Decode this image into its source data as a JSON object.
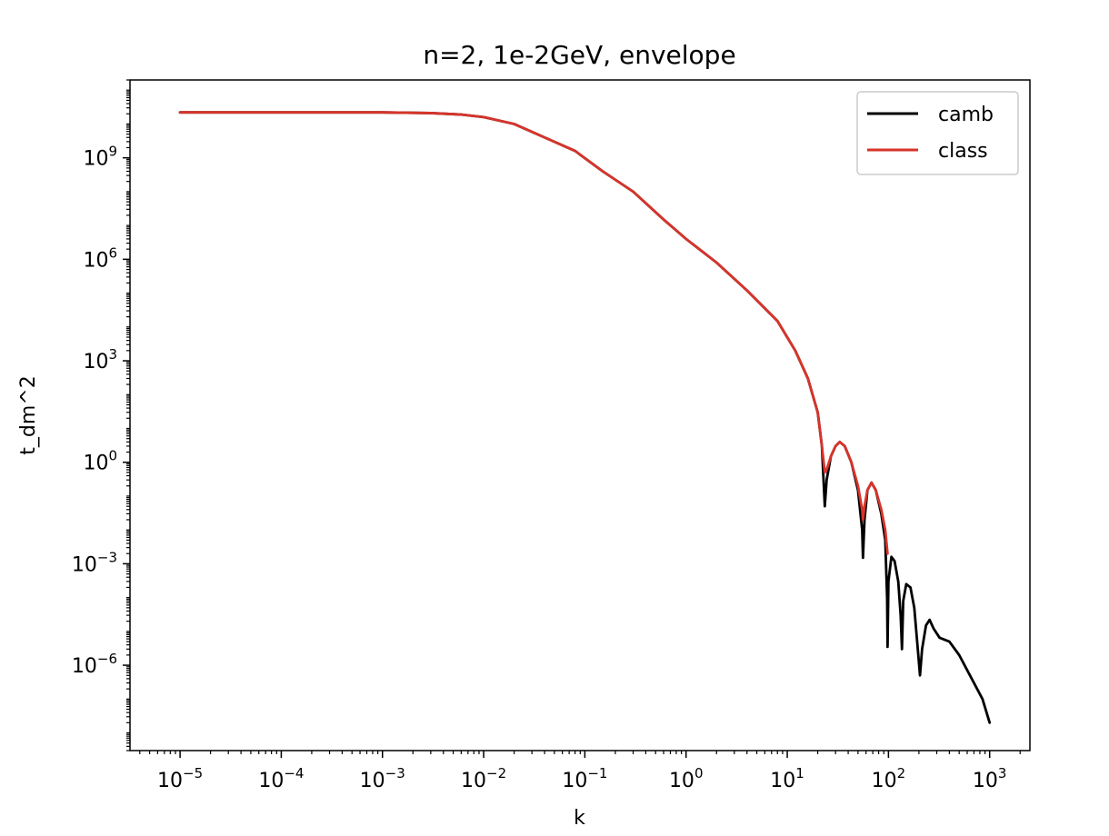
{
  "chart_data": {
    "type": "line",
    "title": "n=2, 1e-2GeV, envelope",
    "xlabel": "k",
    "ylabel": "t_dm^2",
    "xscale": "log",
    "yscale": "log",
    "xlim": [
      3.2e-06,
      2500
    ],
    "ylim": [
      3e-09,
      200000000000.0
    ],
    "x_ticks": [
      {
        "value": 1e-05,
        "base": "10",
        "exp": "−5"
      },
      {
        "value": 0.0001,
        "base": "10",
        "exp": "−4"
      },
      {
        "value": 0.001,
        "base": "10",
        "exp": "−3"
      },
      {
        "value": 0.01,
        "base": "10",
        "exp": "−2"
      },
      {
        "value": 0.1,
        "base": "10",
        "exp": "−1"
      },
      {
        "value": 1,
        "base": "10",
        "exp": "0"
      },
      {
        "value": 10,
        "base": "10",
        "exp": "1"
      },
      {
        "value": 100,
        "base": "10",
        "exp": "2"
      },
      {
        "value": 1000,
        "base": "10",
        "exp": "3"
      }
    ],
    "y_ticks": [
      {
        "value": 1e-06,
        "base": "10",
        "exp": "−6"
      },
      {
        "value": 0.001,
        "base": "10",
        "exp": "−3"
      },
      {
        "value": 1,
        "base": "10",
        "exp": "0"
      },
      {
        "value": 1000.0,
        "base": "10",
        "exp": "3"
      },
      {
        "value": 1000000.0,
        "base": "10",
        "exp": "6"
      },
      {
        "value": 1000000000.0,
        "base": "10",
        "exp": "9"
      }
    ],
    "legend": {
      "position": "top-right"
    },
    "series": [
      {
        "name": "camb",
        "color": "#000000",
        "points": [
          [
            1e-05,
            22000000000.0
          ],
          [
            0.0001,
            22000000000.0
          ],
          [
            0.001,
            22000000000.0
          ],
          [
            0.003,
            21000000000.0
          ],
          [
            0.006,
            19000000000.0
          ],
          [
            0.01,
            16000000000.0
          ],
          [
            0.02,
            10000000000.0
          ],
          [
            0.04,
            4000000000.0
          ],
          [
            0.08,
            1600000000.0
          ],
          [
            0.15,
            400000000.0
          ],
          [
            0.3,
            100000000.0
          ],
          [
            0.6,
            15000000.0
          ],
          [
            1,
            4000000.0
          ],
          [
            2,
            800000.0
          ],
          [
            4,
            120000.0
          ],
          [
            8,
            15000.0
          ],
          [
            12,
            2000.0
          ],
          [
            16,
            300
          ],
          [
            20,
            30
          ],
          [
            22,
            3
          ],
          [
            23.5,
            0.05
          ],
          [
            24.5,
            0.3
          ],
          [
            27,
            1.5
          ],
          [
            30,
            3
          ],
          [
            33,
            4
          ],
          [
            37,
            3
          ],
          [
            43,
            1
          ],
          [
            50,
            0.15
          ],
          [
            55,
            0.01
          ],
          [
            56,
            0.0015
          ],
          [
            58,
            0.02
          ],
          [
            62,
            0.15
          ],
          [
            68,
            0.25
          ],
          [
            75,
            0.15
          ],
          [
            85,
            0.03
          ],
          [
            93,
            0.005
          ],
          [
            97,
            0.0001
          ],
          [
            98,
            3.5e-06
          ],
          [
            100,
            0.0003
          ],
          [
            107,
            0.0016
          ],
          [
            115,
            0.0012
          ],
          [
            125,
            0.0003
          ],
          [
            132,
            3e-05
          ],
          [
            136,
            3e-06
          ],
          [
            140,
            8e-05
          ],
          [
            150,
            0.00025
          ],
          [
            165,
            0.0002
          ],
          [
            180,
            5e-05
          ],
          [
            195,
            3e-06
          ],
          [
            205,
            5e-07
          ],
          [
            215,
            3e-06
          ],
          [
            235,
            1.5e-05
          ],
          [
            255,
            2.2e-05
          ],
          [
            280,
            1.2e-05
          ],
          [
            320,
            6.5e-06
          ],
          [
            400,
            5e-06
          ],
          [
            500,
            2e-06
          ],
          [
            700,
            3e-07
          ],
          [
            850,
            1e-07
          ],
          [
            1000,
            2e-08
          ]
        ]
      },
      {
        "name": "class",
        "color": "#d7342b",
        "points": [
          [
            1e-05,
            22000000000.0
          ],
          [
            0.0001,
            22000000000.0
          ],
          [
            0.001,
            22000000000.0
          ],
          [
            0.003,
            21000000000.0
          ],
          [
            0.006,
            19000000000.0
          ],
          [
            0.01,
            16000000000.0
          ],
          [
            0.02,
            10000000000.0
          ],
          [
            0.04,
            4000000000.0
          ],
          [
            0.08,
            1600000000.0
          ],
          [
            0.15,
            400000000.0
          ],
          [
            0.3,
            100000000.0
          ],
          [
            0.6,
            15000000.0
          ],
          [
            1,
            4000000.0
          ],
          [
            2,
            800000.0
          ],
          [
            4,
            120000.0
          ],
          [
            8,
            15000.0
          ],
          [
            12,
            2000.0
          ],
          [
            16,
            300
          ],
          [
            20,
            30
          ],
          [
            22,
            3
          ],
          [
            23.5,
            0.5
          ],
          [
            24.5,
            0.6
          ],
          [
            27,
            1.5
          ],
          [
            30,
            3
          ],
          [
            33,
            4
          ],
          [
            37,
            3
          ],
          [
            43,
            1
          ],
          [
            50,
            0.2
          ],
          [
            55,
            0.04
          ],
          [
            56,
            0.02
          ],
          [
            58,
            0.05
          ],
          [
            62,
            0.15
          ],
          [
            68,
            0.25
          ],
          [
            75,
            0.15
          ],
          [
            85,
            0.04
          ],
          [
            93,
            0.01
          ],
          [
            98,
            0.002
          ]
        ]
      }
    ]
  }
}
